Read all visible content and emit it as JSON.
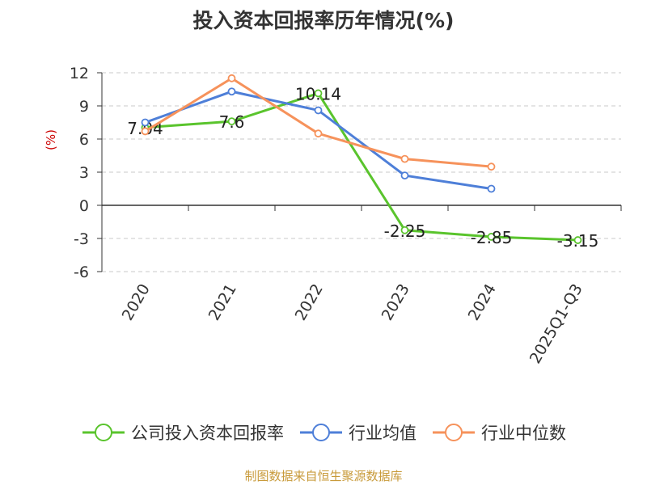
{
  "chart_data": {
    "type": "line",
    "title": "投入资本回报率历年情况(%)",
    "ylabel": "(%)",
    "categories": [
      "2020",
      "2021",
      "2022",
      "2023",
      "2024",
      "2025Q1-Q3"
    ],
    "ylim": [
      -6,
      12
    ],
    "yticks": [
      -6,
      -3,
      0,
      3,
      6,
      9,
      12
    ],
    "grid": true,
    "legend_position": "bottom",
    "series": [
      {
        "name": "公司投入资本回报率",
        "color": "#5ac42d",
        "values": [
          7.04,
          7.6,
          10.14,
          -2.25,
          -2.85,
          -3.15
        ],
        "show_labels": true
      },
      {
        "name": "行业均值",
        "color": "#4e7fd8",
        "values": [
          7.5,
          10.3,
          8.6,
          2.7,
          1.5,
          null
        ],
        "show_labels": false
      },
      {
        "name": "行业中位数",
        "color": "#f6925b",
        "values": [
          6.7,
          11.5,
          6.5,
          4.2,
          3.5,
          null
        ],
        "show_labels": false
      }
    ]
  },
  "source": "制图数据来自恒生聚源数据库"
}
